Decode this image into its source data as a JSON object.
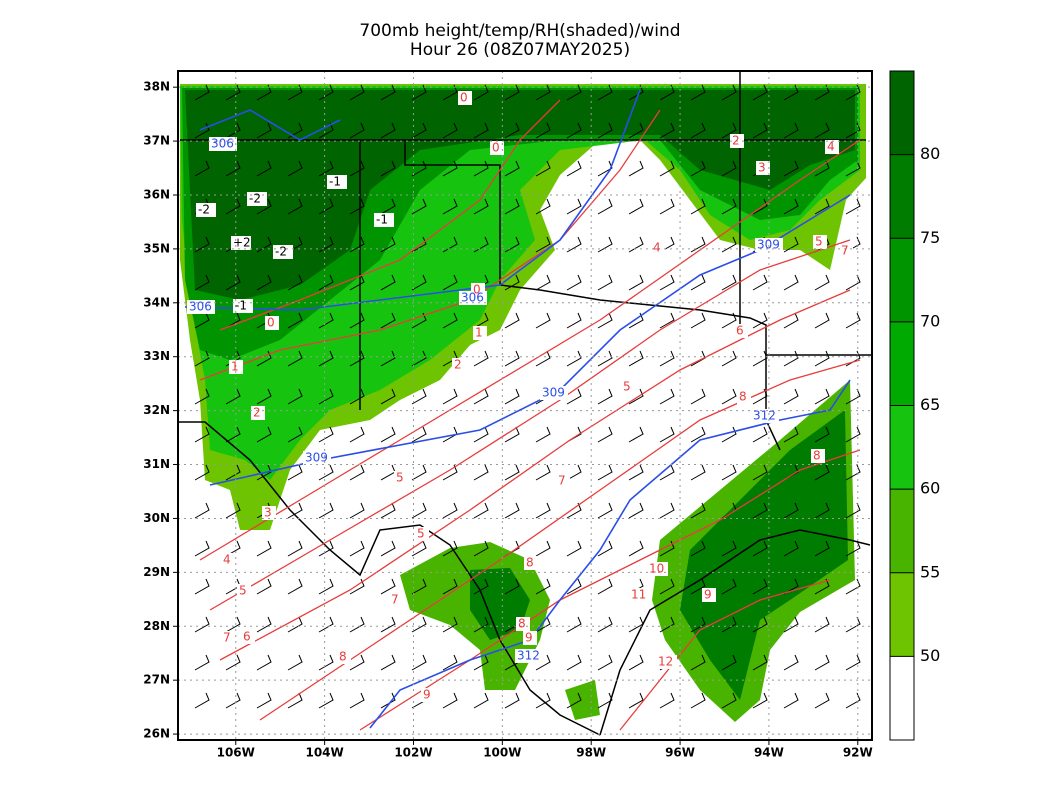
{
  "title": "700mb height/temp/RH(shaded)/wind",
  "subtitle": "Hour 26 (08Z07MAY2025)",
  "map": {
    "xlim": [
      -107.3,
      -91.68
    ],
    "ylim": [
      25.89,
      38.3
    ],
    "xticks": [
      {
        "value": -106,
        "label": "106W"
      },
      {
        "value": -104,
        "label": "104W"
      },
      {
        "value": -102,
        "label": "102W"
      },
      {
        "value": -100,
        "label": "100W"
      },
      {
        "value": -98,
        "label": "98W"
      },
      {
        "value": -96,
        "label": "96W"
      },
      {
        "value": -94,
        "label": "94W"
      },
      {
        "value": -92,
        "label": "92W"
      }
    ],
    "yticks": [
      {
        "value": 26,
        "label": "26N"
      },
      {
        "value": 27,
        "label": "27N"
      },
      {
        "value": 28,
        "label": "28N"
      },
      {
        "value": 29,
        "label": "29N"
      },
      {
        "value": 30,
        "label": "30N"
      },
      {
        "value": 31,
        "label": "31N"
      },
      {
        "value": 32,
        "label": "32N"
      },
      {
        "value": 33,
        "label": "33N"
      },
      {
        "value": 34,
        "label": "34N"
      },
      {
        "value": 35,
        "label": "35N"
      },
      {
        "value": 36,
        "label": "36N"
      },
      {
        "value": 37,
        "label": "37N"
      },
      {
        "value": 38,
        "label": "38N"
      }
    ],
    "grid": true,
    "colorbar": {
      "lim": [
        45,
        85
      ],
      "ticks": [
        50,
        55,
        60,
        65,
        70,
        75,
        80
      ],
      "colors": [
        "#ffffff",
        "#6ec400",
        "#48b400",
        "#16c410",
        "#00aa00",
        "#009400",
        "#007c00",
        "#006400"
      ]
    },
    "temperature_color": "#e83c3c",
    "height_color": "#2a4ee8",
    "temperature_labels": [
      "0",
      "0",
      "0",
      "0",
      "1",
      "1",
      "2",
      "2",
      "2",
      "3",
      "3",
      "4",
      "4",
      "4",
      "5",
      "5",
      "5",
      "5",
      "5",
      "6",
      "6",
      "7",
      "7",
      "7",
      "7",
      "8",
      "8",
      "8",
      "8",
      "8",
      "9",
      "9",
      "9",
      "10",
      "11",
      "12"
    ],
    "height_labels": [
      "306",
      "306",
      "306",
      "309",
      "309",
      "309",
      "312",
      "312"
    ],
    "extra_labels": [
      "-1",
      "-1",
      "-1",
      "-2",
      "-2",
      "-2",
      "+2"
    ]
  }
}
